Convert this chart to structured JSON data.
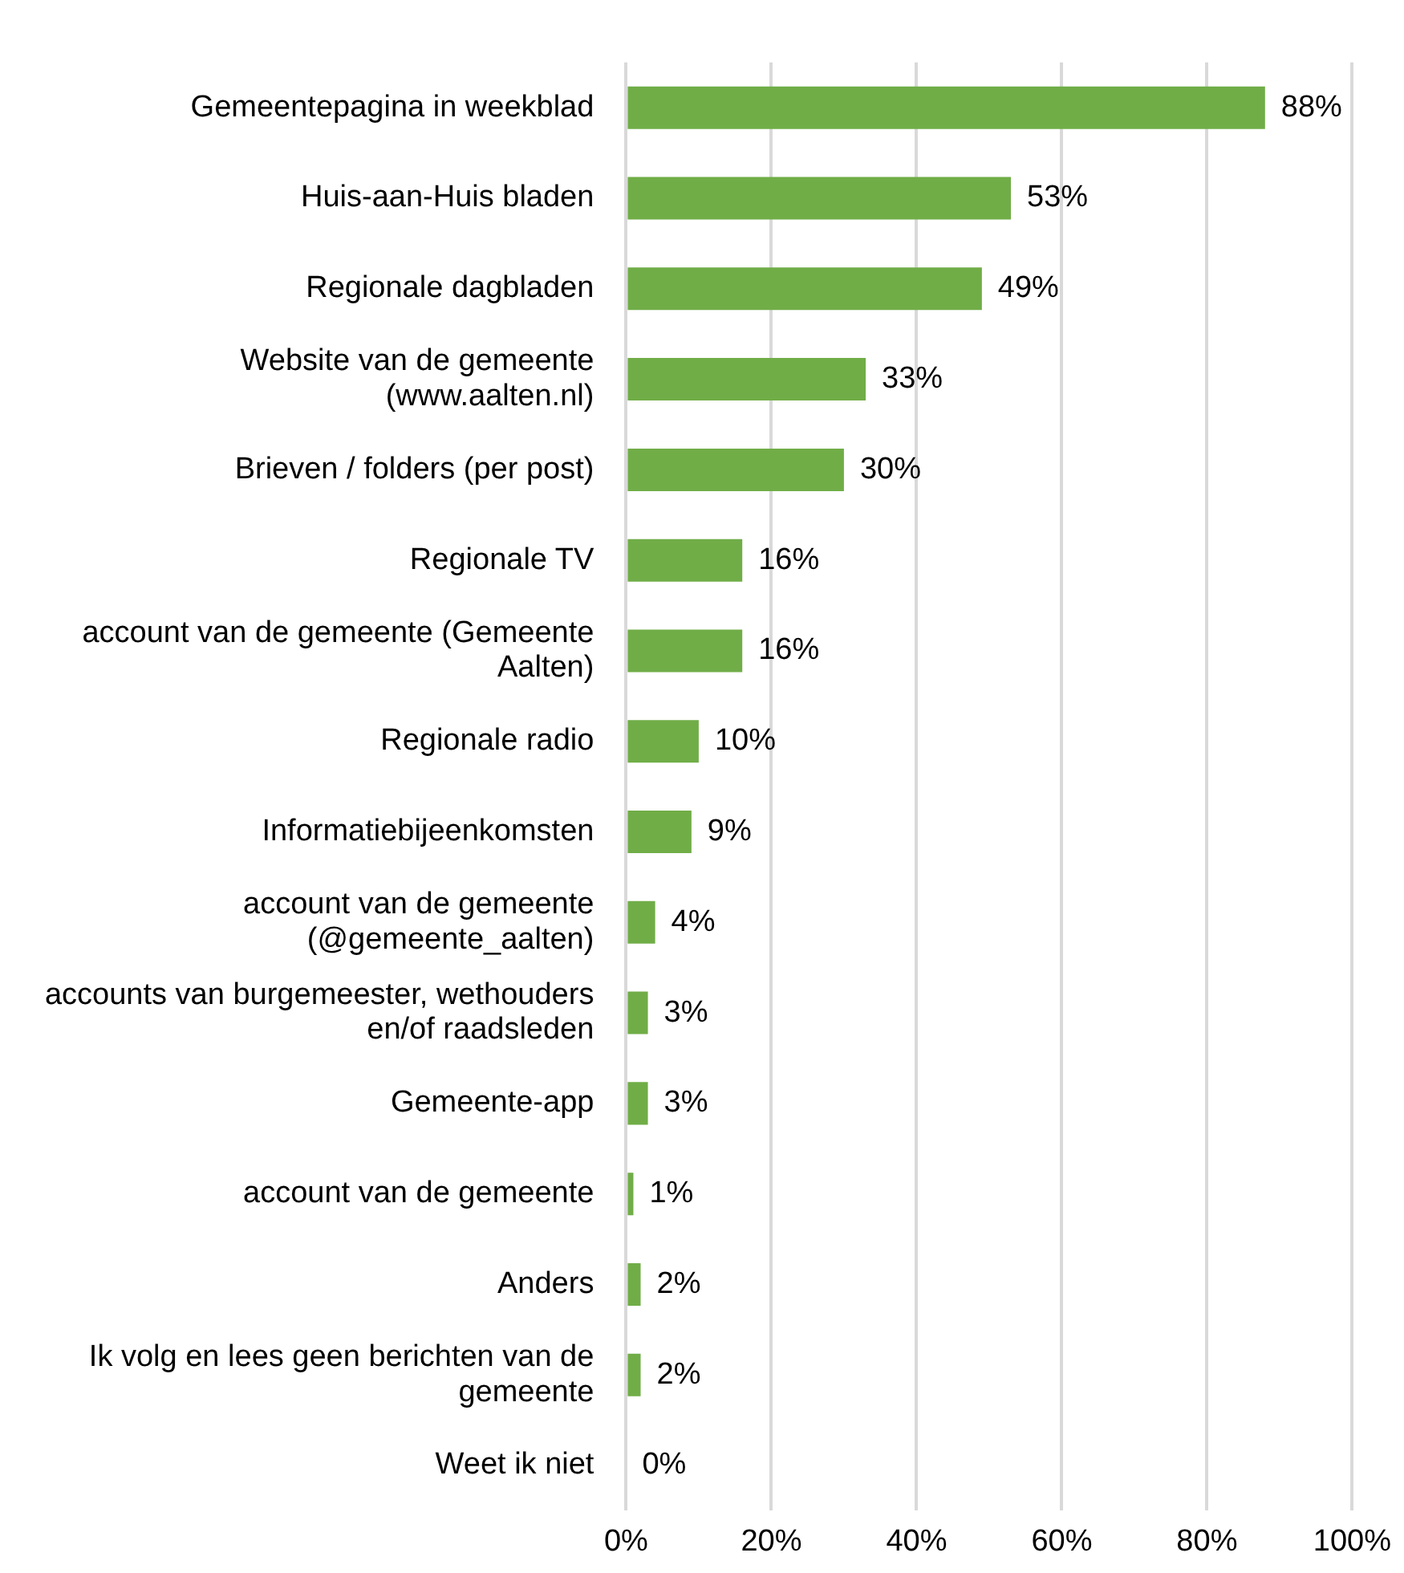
{
  "chart_data": {
    "type": "bar",
    "orientation": "horizontal",
    "categories": [
      "Gemeentepagina in weekblad",
      "Huis-aan-Huis bladen",
      "Regionale dagbladen",
      "Website van de gemeente (www.aalten.nl)",
      "Brieven / folders (per post)",
      "Regionale TV",
      "account van de gemeente (Gemeente Aalten)",
      "Regionale radio",
      "Informatiebijeenkomsten",
      "account van de gemeente (@gemeente_aalten)",
      "accounts van burgemeester, wethouders en/of raadsleden",
      "Gemeente-app",
      "account van de gemeente",
      "Anders",
      "Ik volg en lees geen berichten van de gemeente",
      "Weet ik niet"
    ],
    "values": [
      88,
      53,
      49,
      33,
      30,
      16,
      16,
      10,
      9,
      4,
      3,
      3,
      1,
      2,
      2,
      0
    ],
    "value_labels": [
      "88%",
      "53%",
      "49%",
      "33%",
      "30%",
      "16%",
      "16%",
      "10%",
      "9%",
      "4%",
      "3%",
      "3%",
      "1%",
      "2%",
      "2%",
      "0%"
    ],
    "color": "#70ad47",
    "xlim": [
      0,
      100
    ],
    "xticks": [
      {
        "value": 0,
        "label": "0%"
      },
      {
        "value": 20,
        "label": "20%"
      },
      {
        "value": 40,
        "label": "40%"
      },
      {
        "value": 60,
        "label": "60%"
      },
      {
        "value": 80,
        "label": "80%"
      },
      {
        "value": 100,
        "label": "100%"
      }
    ],
    "grid": "x",
    "legend": false
  }
}
